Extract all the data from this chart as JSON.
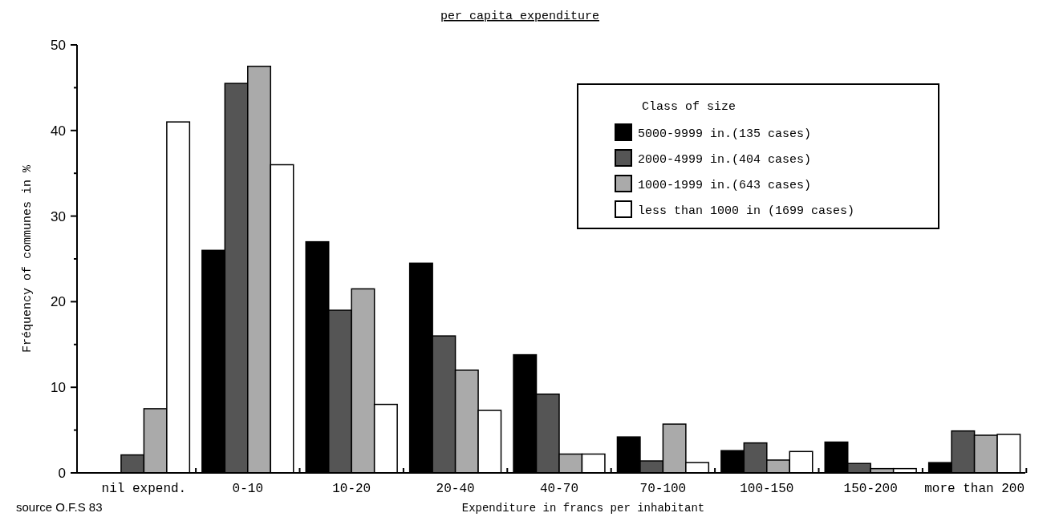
{
  "chart_data": {
    "type": "bar",
    "title": "per capita expenditure",
    "xlabel": "Expenditure in francs per inhabitant",
    "ylabel": "Fréquency of communes in %",
    "legend_title": "Class of size",
    "annotations": [
      "source O.F.S 83"
    ],
    "categories": [
      "nil expend.",
      "0-10",
      "10-20",
      "20-40",
      "40-70",
      "70-100",
      "100-150",
      "150-200",
      "more than 200"
    ],
    "series": [
      {
        "name": "5000-9999 in.(135 cases)",
        "color": "#000000",
        "values": [
          0,
          26,
          27,
          24.5,
          13.8,
          4.2,
          2.6,
          3.6,
          1.2
        ]
      },
      {
        "name": "2000-4999 in.(404 cases)",
        "color": "#555555",
        "values": [
          2.1,
          45.5,
          19,
          16,
          9.2,
          1.4,
          3.5,
          1.1,
          4.9
        ]
      },
      {
        "name": "1000-1999 in.(643 cases)",
        "color": "#aaaaaa",
        "values": [
          7.5,
          47.5,
          21.5,
          12,
          2.2,
          5.7,
          1.5,
          0.5,
          4.4
        ]
      },
      {
        "name": "less than 1000 in (1699 cases)",
        "color": "#ffffff",
        "values": [
          41,
          36,
          8,
          7.3,
          2.2,
          1.2,
          2.5,
          0.5,
          4.5
        ]
      }
    ],
    "ylim": [
      0,
      50
    ],
    "yticks": [
      0,
      {
        "value": 5,
        "label": null
      },
      10,
      {
        "value": 15,
        "label": null
      },
      20,
      {
        "value": 25,
        "label": null
      },
      30,
      {
        "value": 35,
        "label": null
      },
      40,
      {
        "value": 45,
        "label": null
      },
      50
    ],
    "grid": false,
    "legend": "top right"
  }
}
